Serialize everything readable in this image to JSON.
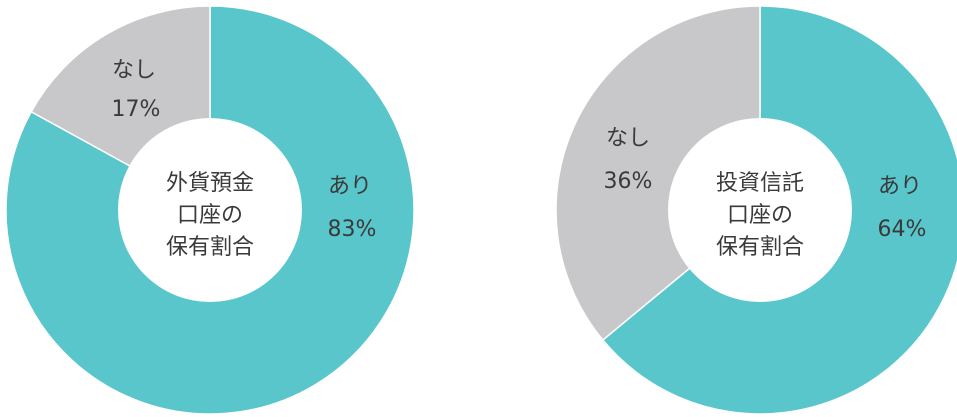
{
  "colors": {
    "yes": "#58c6cb",
    "no": "#c8c8ca",
    "separator": "#ffffff",
    "text": "#3a3a3a"
  },
  "chart_data": [
    {
      "type": "pie",
      "center_label": [
        "外貨預金",
        "口座の",
        "保有割合"
      ],
      "slices": [
        {
          "label": "あり",
          "value": 83,
          "value_text": "83%",
          "color": "#58c6cb"
        },
        {
          "label": "なし",
          "value": 17,
          "value_text": "17%",
          "color": "#c8c8ca"
        }
      ]
    },
    {
      "type": "pie",
      "center_label": [
        "投資信託",
        "口座の",
        "保有割合"
      ],
      "slices": [
        {
          "label": "あり",
          "value": 64,
          "value_text": "64%",
          "color": "#58c6cb"
        },
        {
          "label": "なし",
          "value": 36,
          "value_text": "36%",
          "color": "#c8c8ca"
        }
      ]
    }
  ]
}
